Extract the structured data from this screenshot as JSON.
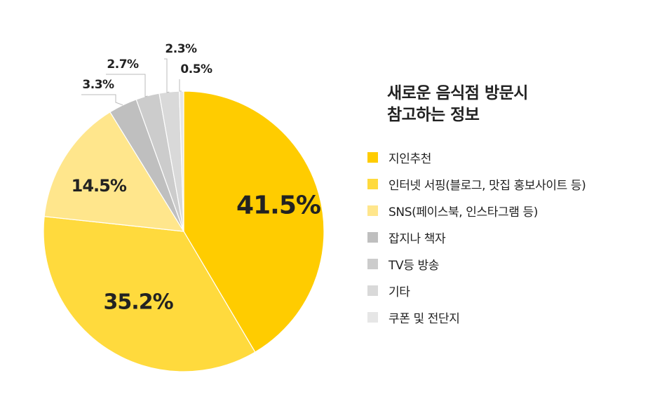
{
  "chart_data": {
    "type": "pie",
    "title_lines": [
      "새로운 음식점 방문시",
      "참고하는 정보"
    ],
    "categories": [
      "지인추천",
      "인터넷 서핑(블로그, 맛집 홍보사이트 등)",
      "SNS(페이스북, 인스타그램 등)",
      "잡지나 책자",
      "TV등 방송",
      "기타",
      "쿠폰 및 전단지"
    ],
    "values": [
      41.5,
      35.2,
      14.5,
      3.3,
      2.7,
      2.3,
      0.5
    ],
    "labels": [
      "41.5%",
      "35.2%",
      "14.5%",
      "3.3%",
      "2.7%",
      "2.3%",
      "0.5%"
    ],
    "colors": [
      "#FFCC00",
      "#FFDA3D",
      "#FFE68C",
      "#BFBFBF",
      "#CCCCCC",
      "#D9D9D9",
      "#E6E6E6"
    ],
    "label_color": "#222222",
    "legend_placement": "right"
  }
}
